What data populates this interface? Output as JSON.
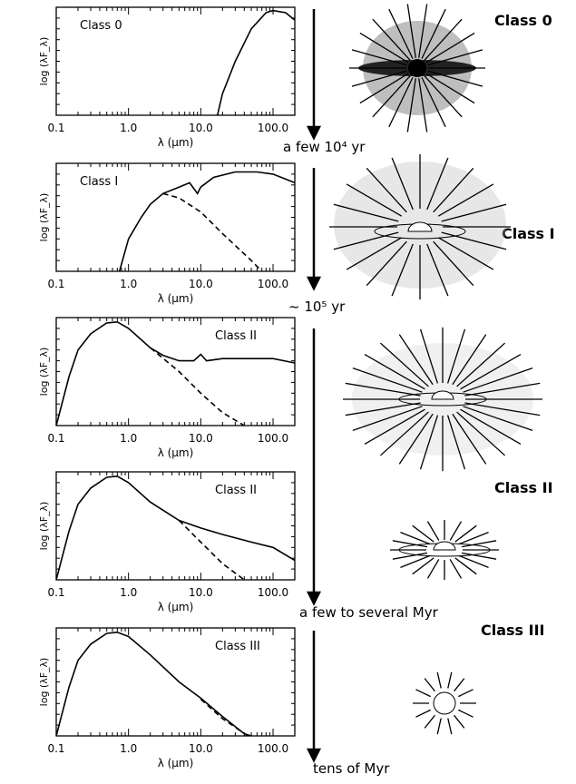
{
  "chart_data": [
    {
      "type": "line",
      "title": "Class 0",
      "label_corner": "upper left",
      "xlabel": "λ (μm)",
      "ylabel": "log (λF_λ)",
      "log_x": true,
      "xlim": [
        0.1,
        200
      ],
      "xticks": [
        0.1,
        {
          "value": 1,
          "label": "1.0"
        },
        {
          "value": 10,
          "label": "10.0"
        },
        {
          "value": 100,
          "label": "100.0"
        }
      ],
      "ylim": [
        0,
        1
      ],
      "series": [
        {
          "color": "#000000",
          "dashed": false,
          "x": [
            17,
            20,
            30,
            50,
            80,
            100,
            150,
            200
          ],
          "values": [
            0,
            0.2,
            0.5,
            0.8,
            0.95,
            0.97,
            0.95,
            0.88
          ]
        }
      ]
    },
    {
      "type": "line",
      "title": "Class I",
      "label_corner": "upper left",
      "xlabel": "λ (μm)",
      "ylabel": "log (λF_λ)",
      "log_x": true,
      "xlim": [
        0.1,
        200
      ],
      "xticks": [
        0.1,
        {
          "value": 1,
          "label": "1.0"
        },
        {
          "value": 10,
          "label": "10.0"
        },
        {
          "value": 100,
          "label": "100.0"
        }
      ],
      "ylim": [
        0,
        1
      ],
      "series": [
        {
          "color": "#000000",
          "dashed": false,
          "x": [
            0.75,
            1,
            1.5,
            2,
            3,
            5,
            7,
            9,
            10,
            15,
            30,
            60,
            100,
            200
          ],
          "values": [
            0,
            0.3,
            0.5,
            0.62,
            0.72,
            0.78,
            0.82,
            0.72,
            0.78,
            0.87,
            0.92,
            0.92,
            0.9,
            0.82
          ]
        },
        {
          "color": "#000000",
          "dashed": true,
          "x": [
            3,
            5,
            10,
            20,
            50,
            70
          ],
          "values": [
            0.72,
            0.68,
            0.55,
            0.35,
            0.1,
            0
          ]
        }
      ]
    },
    {
      "type": "line",
      "title": "Class II",
      "label_corner": "upper right",
      "xlabel": "λ (μm)",
      "ylabel": "log (λF_λ)",
      "log_x": true,
      "xlim": [
        0.1,
        200
      ],
      "xticks": [
        0.1,
        {
          "value": 1,
          "label": "1.0"
        },
        {
          "value": 10,
          "label": "10.0"
        },
        {
          "value": 100,
          "label": "100.0"
        }
      ],
      "ylim": [
        0,
        1
      ],
      "series": [
        {
          "color": "#000000",
          "dashed": false,
          "x": [
            0.1,
            0.15,
            0.2,
            0.3,
            0.5,
            0.7,
            1,
            2,
            3,
            5,
            8,
            10,
            12,
            20,
            50,
            100,
            200
          ],
          "values": [
            0,
            0.45,
            0.7,
            0.85,
            0.95,
            0.96,
            0.9,
            0.72,
            0.65,
            0.6,
            0.6,
            0.66,
            0.6,
            0.62,
            0.62,
            0.62,
            0.58
          ]
        },
        {
          "color": "#000000",
          "dashed": true,
          "x": [
            2,
            5,
            10,
            20,
            40
          ],
          "values": [
            0.72,
            0.5,
            0.3,
            0.12,
            0
          ]
        }
      ]
    },
    {
      "type": "line",
      "title": "Class II",
      "label_corner": "upper right",
      "xlabel": "λ (μm)",
      "ylabel": "log (λF_λ)",
      "log_x": true,
      "xlim": [
        0.1,
        200
      ],
      "xticks": [
        0.1,
        {
          "value": 1,
          "label": "1.0"
        },
        {
          "value": 10,
          "label": "10.0"
        },
        {
          "value": 100,
          "label": "100.0"
        }
      ],
      "ylim": [
        0,
        1
      ],
      "series": [
        {
          "color": "#000000",
          "dashed": false,
          "x": [
            0.1,
            0.15,
            0.2,
            0.3,
            0.5,
            0.7,
            1,
            2,
            5,
            10,
            20,
            50,
            100,
            200
          ],
          "values": [
            0,
            0.45,
            0.7,
            0.85,
            0.95,
            0.96,
            0.9,
            0.72,
            0.55,
            0.48,
            0.42,
            0.35,
            0.3,
            0.18
          ]
        },
        {
          "color": "#000000",
          "dashed": true,
          "x": [
            5,
            10,
            20,
            40
          ],
          "values": [
            0.55,
            0.35,
            0.15,
            0
          ]
        }
      ]
    },
    {
      "type": "line",
      "title": "Class III",
      "label_corner": "upper right",
      "xlabel": "λ (μm)",
      "ylabel": "log (λF_λ)",
      "log_x": true,
      "xlim": [
        0.1,
        200
      ],
      "xticks": [
        0.1,
        {
          "value": 1,
          "label": "1.0"
        },
        {
          "value": 10,
          "label": "10.0"
        },
        {
          "value": 100,
          "label": "100.0"
        }
      ],
      "ylim": [
        0,
        1
      ],
      "series": [
        {
          "color": "#000000",
          "dashed": false,
          "x": [
            0.1,
            0.15,
            0.2,
            0.3,
            0.5,
            0.7,
            1,
            2,
            5,
            10,
            20,
            40,
            50
          ],
          "values": [
            0,
            0.45,
            0.7,
            0.85,
            0.95,
            0.96,
            0.92,
            0.75,
            0.5,
            0.35,
            0.18,
            0.02,
            0
          ]
        },
        {
          "color": "#000000",
          "dashed": true,
          "x": [
            10,
            20,
            45
          ],
          "values": [
            0.34,
            0.16,
            0
          ]
        }
      ]
    }
  ],
  "stages": [
    {
      "label": "Class 0",
      "age": "a few 10⁴ yr"
    },
    {
      "label": "Class I",
      "age": "~ 10⁵ yr"
    },
    {
      "label": "Class II",
      "age": "a few to several Myr"
    },
    {
      "label": "Class III",
      "age": "tens of Myr"
    }
  ]
}
